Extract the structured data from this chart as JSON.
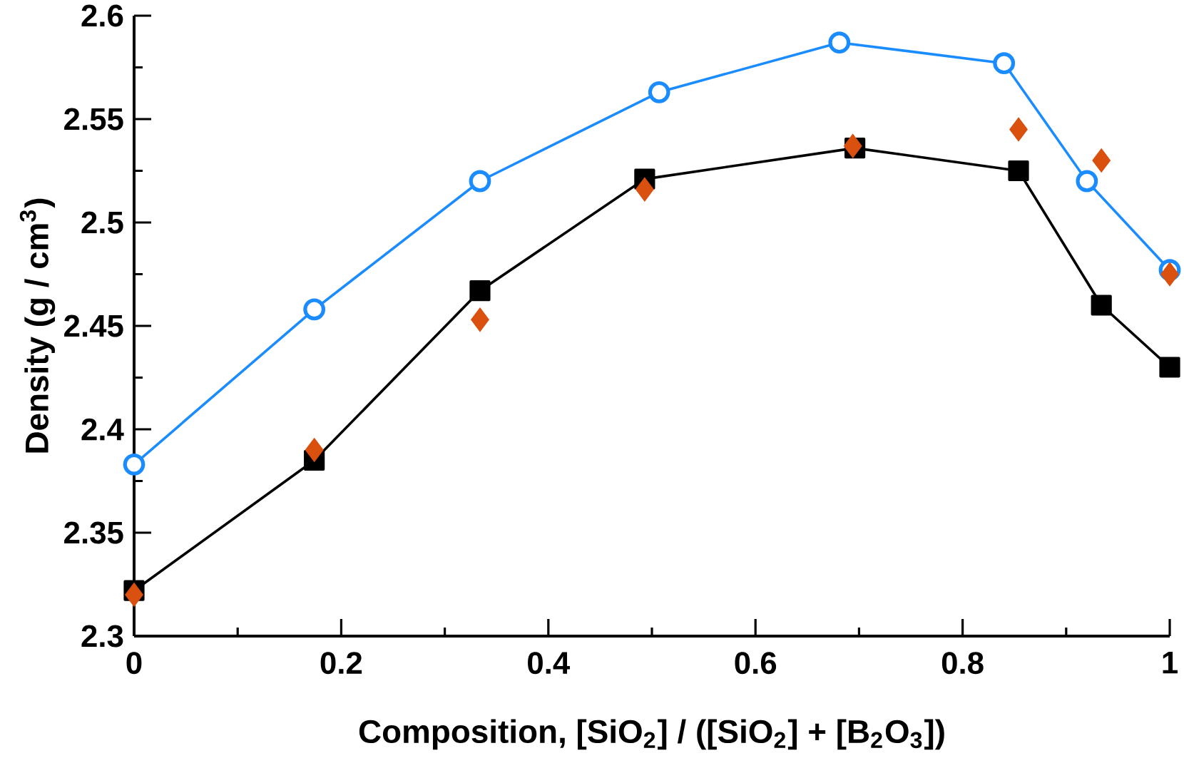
{
  "chart_data": {
    "type": "line",
    "xlabel": "Composition, [SiO$_{2}$] / ([SiO$_{2}$] + [B$_{2}$O$_{3}$])",
    "ylabel": "Density (g / cm$^{3}$)",
    "xlim": [
      0,
      1
    ],
    "ylim": [
      2.3,
      2.6
    ],
    "xticks": [
      0,
      0.2,
      0.4,
      0.6,
      0.8,
      1
    ],
    "yticks": [
      2.3,
      2.35,
      2.4,
      2.45,
      2.5,
      2.55,
      2.6
    ],
    "series": [
      {
        "marker": "circle",
        "color": "#1a8cff",
        "x": [
          0,
          0.174,
          0.334,
          0.507,
          0.681,
          0.84,
          0.92,
          1
        ],
        "values": [
          2.383,
          2.458,
          2.52,
          2.563,
          2.587,
          2.577,
          2.52,
          2.477
        ]
      },
      {
        "marker": "square",
        "color": "#000000",
        "x": [
          0,
          0.174,
          0.334,
          0.493,
          0.696,
          0.854,
          0.934,
          1
        ],
        "values": [
          2.322,
          2.385,
          2.467,
          2.521,
          2.536,
          2.525,
          2.46,
          2.43
        ]
      },
      {
        "type": "scatter",
        "marker": "diamond",
        "color": "#d9500f",
        "x": [
          0,
          0.174,
          0.334,
          0.493,
          0.694,
          0.854,
          0.934,
          1
        ],
        "values": [
          2.32,
          2.39,
          2.453,
          2.516,
          2.537,
          2.545,
          2.53,
          2.475
        ]
      }
    ]
  }
}
